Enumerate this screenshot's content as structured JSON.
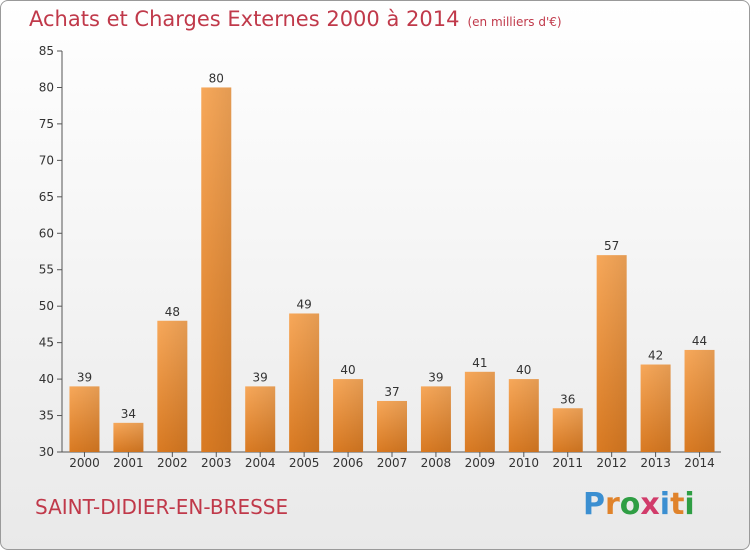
{
  "title": "Achats et Charges Externes 2000 à 2014",
  "subtitle": "(en milliers d'€)",
  "commune": "SAINT-DIDIER-EN-BRESSE",
  "logo": {
    "letters": [
      "P",
      "r",
      "o",
      "x",
      "i",
      "t",
      "i"
    ],
    "colors": [
      "#3b8fd1",
      "#e0832b",
      "#2f9e44",
      "#d13b6a",
      "#3b8fd1",
      "#e0832b",
      "#2f9e44"
    ]
  },
  "colors": {
    "bar_top": "#f7a85a",
    "bar_bottom": "#d97a22",
    "title": "#c0394a",
    "axis": "#555555"
  },
  "chart_data": {
    "type": "bar",
    "categories": [
      "2000",
      "2001",
      "2002",
      "2003",
      "2004",
      "2005",
      "2006",
      "2007",
      "2008",
      "2009",
      "2010",
      "2011",
      "2012",
      "2013",
      "2014"
    ],
    "values": [
      39,
      34,
      48,
      80,
      39,
      49,
      40,
      37,
      39,
      41,
      40,
      36,
      57,
      42,
      44
    ],
    "title": "Achats et Charges Externes 2000 à 2014",
    "xlabel": "",
    "ylabel": "",
    "ylim": [
      30,
      85
    ],
    "yticks": [
      30,
      35,
      40,
      45,
      50,
      55,
      60,
      65,
      70,
      75,
      80,
      85
    ],
    "grid": false,
    "data_labels": true
  }
}
